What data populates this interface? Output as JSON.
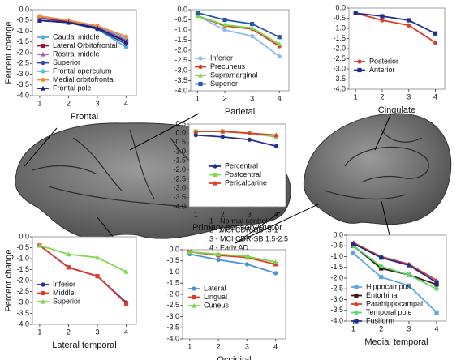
{
  "chart_data": [
    {
      "type": "line",
      "x_label": "Frontal",
      "y_label": "Percent change",
      "x": [
        1,
        2,
        3,
        4
      ],
      "xlim": [
        0.75,
        4.35
      ],
      "xticks": [
        1,
        2,
        3,
        4
      ],
      "ylim": [
        -4,
        0
      ],
      "yticks": [
        {
          "value": 0,
          "label": "0.0"
        },
        -0.5,
        {
          "value": -1,
          "label": "-1.0"
        },
        -1.5,
        {
          "value": -2,
          "label": "-2.0"
        },
        -2.5,
        {
          "value": -3,
          "label": "-3.0"
        },
        -3.5,
        {
          "value": -4,
          "label": "-4.0"
        }
      ],
      "series": [
        {
          "name": "Caudal middle",
          "color": "#5aa7e0",
          "marker": "circle",
          "values": [
            -0.3,
            -0.6,
            -0.9,
            -1.75
          ]
        },
        {
          "name": "Lateral Orbitofrontal",
          "color": "#8c1d3c",
          "marker": "square",
          "values": [
            -0.4,
            -0.55,
            -0.85,
            -1.45
          ]
        },
        {
          "name": "Rostral middle",
          "color": "#9b5fc0",
          "marker": "triangle",
          "values": [
            -0.35,
            -0.5,
            -0.8,
            -1.4
          ]
        },
        {
          "name": "Superior",
          "color": "#2a4a9a",
          "marker": "circle",
          "values": [
            -0.5,
            -0.6,
            -0.9,
            -1.6
          ]
        },
        {
          "name": "Frontal operculum",
          "color": "#52c2d8",
          "marker": "circle",
          "values": [
            -0.3,
            -0.5,
            -0.75,
            -1.3
          ]
        },
        {
          "name": "Medial orbitofrontal",
          "color": "#f08c3c",
          "marker": "circle",
          "values": [
            -0.3,
            -0.5,
            -0.75,
            -1.25
          ]
        },
        {
          "name": "Frontal pole",
          "color": "#1a237e",
          "marker": "triangle",
          "values": [
            -0.5,
            -0.6,
            -0.85,
            -1.5
          ]
        }
      ]
    },
    {
      "type": "line",
      "x_label": "Parietal",
      "x": [
        1,
        2,
        3,
        4
      ],
      "xlim": [
        0.75,
        4.35
      ],
      "xticks": [
        1,
        2,
        3,
        4
      ],
      "ylim": [
        -4,
        0
      ],
      "yticks": [
        {
          "value": 0,
          "label": "0.0"
        },
        -0.5,
        {
          "value": -1,
          "label": "-1.0"
        },
        -1.5,
        {
          "value": -2,
          "label": "-2.0"
        },
        -2.5,
        {
          "value": -3,
          "label": "-3.0"
        },
        -3.5,
        {
          "value": -4,
          "label": "-4.0"
        }
      ],
      "series": [
        {
          "name": "Inferior",
          "color": "#8fbde8",
          "marker": "circle",
          "values": [
            -0.3,
            -1.0,
            -1.3,
            -2.3
          ]
        },
        {
          "name": "Precuneus",
          "color": "#d93a2a",
          "marker": "circle",
          "values": [
            -0.3,
            -0.8,
            -0.95,
            -1.8
          ]
        },
        {
          "name": "Supramarginal",
          "color": "#7ad84a",
          "marker": "triangle",
          "values": [
            -0.3,
            -0.75,
            -0.9,
            -1.7
          ]
        },
        {
          "name": "Superior",
          "color": "#2a56a8",
          "marker": "square",
          "values": [
            -0.15,
            -0.5,
            -0.7,
            -1.35
          ]
        }
      ]
    },
    {
      "type": "line",
      "x_label": "Cingulate",
      "x": [
        1,
        2,
        3,
        4
      ],
      "xlim": [
        0.75,
        4.35
      ],
      "xticks": [
        1,
        2,
        3,
        4
      ],
      "ylim": [
        -4,
        0
      ],
      "yticks": [
        {
          "value": 0,
          "label": "0.0"
        },
        -0.5,
        {
          "value": -1,
          "label": "-1.0"
        },
        -1.5,
        {
          "value": -2,
          "label": "-2.0"
        },
        -2.5,
        {
          "value": -3,
          "label": "-3.0"
        },
        -3.5,
        {
          "value": -4,
          "label": "-4.0"
        }
      ],
      "series": [
        {
          "name": "Posterior",
          "color": "#e03a2a",
          "marker": "circle",
          "values": [
            -0.25,
            -0.6,
            -0.85,
            -1.7
          ]
        },
        {
          "name": "Anterior",
          "color": "#1f2f8f",
          "marker": "square",
          "values": [
            -0.25,
            -0.4,
            -0.6,
            -1.25
          ]
        }
      ]
    },
    {
      "type": "line",
      "x_label": "Primary sensory/motor",
      "x": [
        1,
        2,
        3,
        4
      ],
      "xlim": [
        0.75,
        4.35
      ],
      "xticks": [
        1,
        2,
        3,
        4
      ],
      "ylim": [
        -4,
        0.5
      ],
      "yticks": [
        0.5,
        {
          "value": 0,
          "label": "0.0"
        },
        -0.5,
        {
          "value": -1,
          "label": "-1.0"
        },
        -1.5,
        {
          "value": -2,
          "label": "-2.0"
        },
        -2.5,
        {
          "value": -3,
          "label": "-3.0"
        },
        -3.5,
        {
          "value": -4,
          "label": "-4.0"
        }
      ],
      "series": [
        {
          "name": "Percentral",
          "color": "#1f2f8f",
          "marker": "circle",
          "values": [
            -0.1,
            -0.2,
            -0.35,
            -0.7
          ]
        },
        {
          "name": "Postcentral",
          "color": "#7ad84a",
          "marker": "square",
          "values": [
            0.1,
            0.1,
            0.0,
            -0.2
          ]
        },
        {
          "name": "Pericalcarine",
          "color": "#e03a2a",
          "marker": "triangle",
          "values": [
            0.1,
            0.1,
            0.0,
            -0.1
          ]
        }
      ]
    },
    {
      "type": "line",
      "x_label": "Lateral temporal",
      "y_label": "Percent change",
      "x": [
        1,
        2,
        3,
        4
      ],
      "xlim": [
        0.75,
        4.35
      ],
      "xticks": [
        1,
        2,
        3,
        4
      ],
      "ylim": [
        -4,
        0
      ],
      "yticks": [
        {
          "value": 0,
          "label": "0.0"
        },
        -0.5,
        {
          "value": -1,
          "label": "-1.0"
        },
        -1.5,
        {
          "value": -2,
          "label": "-2.0"
        },
        -2.5,
        {
          "value": -3,
          "label": "-3.0"
        },
        -3.5,
        {
          "value": -4,
          "label": "-4.0"
        }
      ],
      "series": [
        {
          "name": "Inferior",
          "color": "#1f2f8f",
          "marker": "circle",
          "values": [
            -0.4,
            -1.4,
            -1.8,
            -3.0
          ]
        },
        {
          "name": "Middle",
          "color": "#e03a2a",
          "marker": "square",
          "values": [
            -0.4,
            -1.4,
            -1.8,
            -3.05
          ]
        },
        {
          "name": "Superior",
          "color": "#7ad84a",
          "marker": "triangle",
          "values": [
            -0.4,
            -0.8,
            -0.95,
            -1.6
          ]
        }
      ]
    },
    {
      "type": "line",
      "x_label": "Occipital",
      "x": [
        1,
        2,
        3,
        4
      ],
      "xlim": [
        0.75,
        4.35
      ],
      "xticks": [
        1,
        2,
        3,
        4
      ],
      "ylim": [
        -4,
        0
      ],
      "yticks": [
        {
          "value": 0,
          "label": "0.0"
        },
        -0.5,
        {
          "value": -1,
          "label": "-1.0"
        },
        -1.5,
        {
          "value": -2,
          "label": "-2.0"
        },
        -2.5,
        {
          "value": -3,
          "label": "-3.0"
        },
        -3.5,
        {
          "value": -4,
          "label": "-4.0"
        }
      ],
      "series": [
        {
          "name": "Lateral",
          "color": "#4a90d9",
          "marker": "circle",
          "values": [
            -0.2,
            -0.45,
            -0.65,
            -1.05
          ]
        },
        {
          "name": "Lingual",
          "color": "#e03a2a",
          "marker": "square",
          "values": [
            -0.1,
            -0.25,
            -0.35,
            -0.65
          ]
        },
        {
          "name": "Cuneus",
          "color": "#7ad84a",
          "marker": "triangle",
          "values": [
            -0.1,
            -0.2,
            -0.3,
            -0.55
          ]
        }
      ]
    },
    {
      "type": "line",
      "x_label": "Medial temporal",
      "x": [
        1,
        2,
        3,
        4
      ],
      "xlim": [
        0.75,
        4.35
      ],
      "xticks": [
        1,
        2,
        3,
        4
      ],
      "ylim": [
        -4,
        0
      ],
      "yticks": [
        {
          "value": 0,
          "label": "0.0"
        },
        -0.5,
        {
          "value": -1,
          "label": "-1.0"
        },
        -1.5,
        {
          "value": -2,
          "label": "-2.0"
        },
        -2.5,
        {
          "value": -3,
          "label": "-3.0"
        },
        -3.5,
        {
          "value": -4,
          "label": "-4.0"
        }
      ],
      "series": [
        {
          "name": "Hippocampus",
          "color": "#5aa7e0",
          "marker": "square",
          "values": [
            -0.85,
            -1.95,
            -2.35,
            -3.6
          ]
        },
        {
          "name": "Entorhinal",
          "color": "#3b1a10",
          "marker": "square",
          "values": [
            -0.5,
            -1.55,
            -1.85,
            -2.3
          ]
        },
        {
          "name": "Parahippocampal",
          "color": "#e03a2a",
          "marker": "triangle",
          "values": [
            -0.35,
            -1.0,
            -1.35,
            -2.1
          ]
        },
        {
          "name": "Temporal pole",
          "color": "#5ad86a",
          "marker": "circle",
          "values": [
            -0.5,
            -1.45,
            -1.85,
            -2.5
          ]
        },
        {
          "name": "Fusiform",
          "color": "#1f2f8f",
          "marker": "square",
          "values": [
            -0.4,
            -1.05,
            -1.4,
            -2.2
          ]
        }
      ]
    }
  ],
  "group_key": [
    "1 - Normal control",
    "2 - MCI CDR-SB .5-1",
    "3 - MCI CDR-SB 1.5-2.5",
    "4 - Early AD"
  ]
}
